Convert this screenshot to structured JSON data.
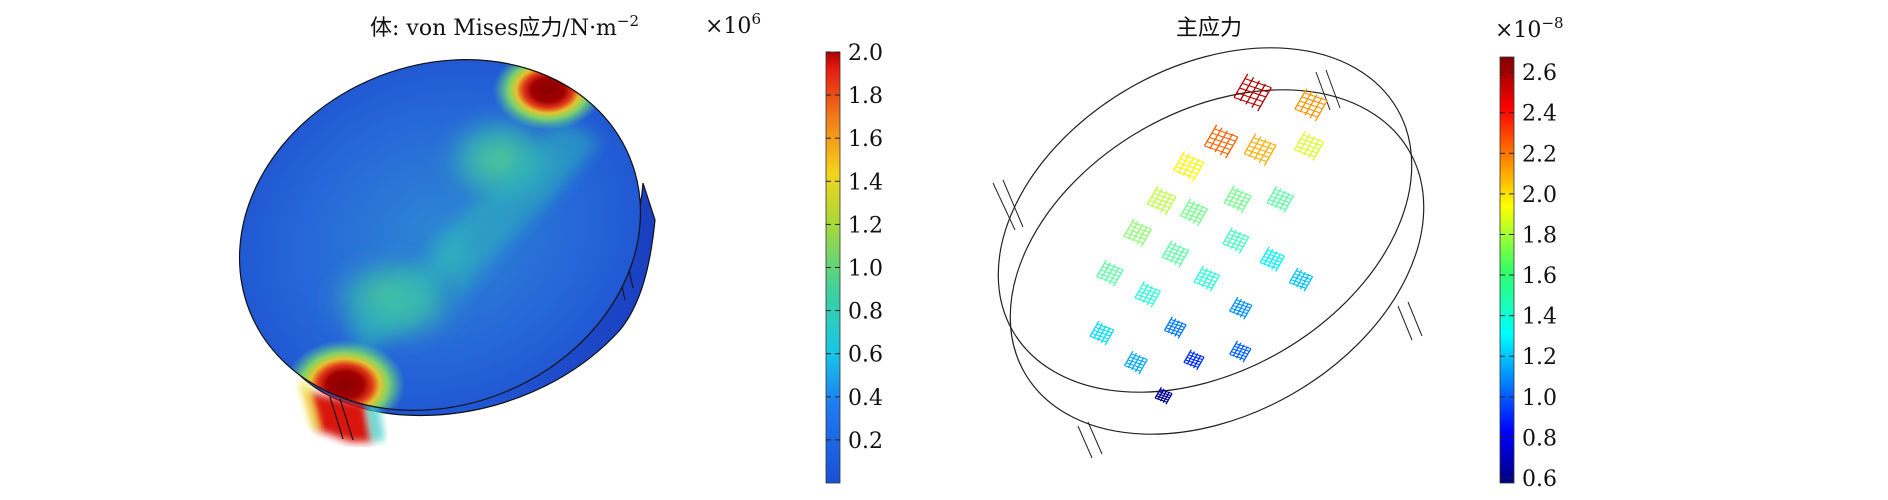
{
  "left_panel": {
    "title_prefix": "体: von Mises应力/N·m",
    "title_exponent": "−2",
    "colorbar": {
      "multiplier": "×10",
      "multiplier_exponent": "6",
      "ticks": [
        "2.0",
        "1.8",
        "1.6",
        "1.4",
        "1.2",
        "1.0",
        "0.8",
        "0.6",
        "0.4",
        "0.2"
      ],
      "range": [
        0,
        2.0
      ]
    }
  },
  "right_panel": {
    "title": "主应力",
    "colorbar": {
      "multiplier": "×10",
      "multiplier_exponent": "−8",
      "ticks": [
        "2.6",
        "2.4",
        "2.2",
        "2.0",
        "1.8",
        "1.6",
        "1.4",
        "1.2",
        "1.0",
        "0.8",
        "0.6"
      ],
      "range": [
        0.6,
        2.65
      ]
    },
    "arrow_glyphs": [
      {
        "u": 0.8,
        "v": 0.1,
        "value": 2.55
      },
      {
        "u": 0.66,
        "v": 0.2,
        "value": 2.2
      },
      {
        "u": 0.92,
        "v": 0.25,
        "value": 2.1
      },
      {
        "u": 0.55,
        "v": 0.22,
        "value": 1.9
      },
      {
        "u": 0.44,
        "v": 0.28,
        "value": 1.75
      },
      {
        "u": 0.74,
        "v": 0.3,
        "value": 2.05
      },
      {
        "u": 0.86,
        "v": 0.38,
        "value": 1.8
      },
      {
        "u": 0.34,
        "v": 0.34,
        "value": 1.65
      },
      {
        "u": 0.5,
        "v": 0.38,
        "value": 1.6
      },
      {
        "u": 0.62,
        "v": 0.42,
        "value": 1.6
      },
      {
        "u": 0.22,
        "v": 0.42,
        "value": 1.55
      },
      {
        "u": 0.4,
        "v": 0.48,
        "value": 1.55
      },
      {
        "u": 0.56,
        "v": 0.55,
        "value": 1.5
      },
      {
        "u": 0.72,
        "v": 0.5,
        "value": 1.55
      },
      {
        "u": 0.28,
        "v": 0.56,
        "value": 1.45
      },
      {
        "u": 0.44,
        "v": 0.62,
        "value": 1.45
      },
      {
        "u": 0.12,
        "v": 0.6,
        "value": 1.3
      },
      {
        "u": 0.62,
        "v": 0.68,
        "value": 1.35
      },
      {
        "u": 0.3,
        "v": 0.72,
        "value": 1.1
      },
      {
        "u": 0.48,
        "v": 0.78,
        "value": 1.15
      },
      {
        "u": 0.16,
        "v": 0.76,
        "value": 1.2
      },
      {
        "u": 0.66,
        "v": 0.8,
        "value": 1.25
      },
      {
        "u": 0.3,
        "v": 0.86,
        "value": 0.95
      },
      {
        "u": 0.18,
        "v": 0.92,
        "value": 0.65
      },
      {
        "u": 0.42,
        "v": 0.92,
        "value": 1.05
      }
    ]
  }
}
